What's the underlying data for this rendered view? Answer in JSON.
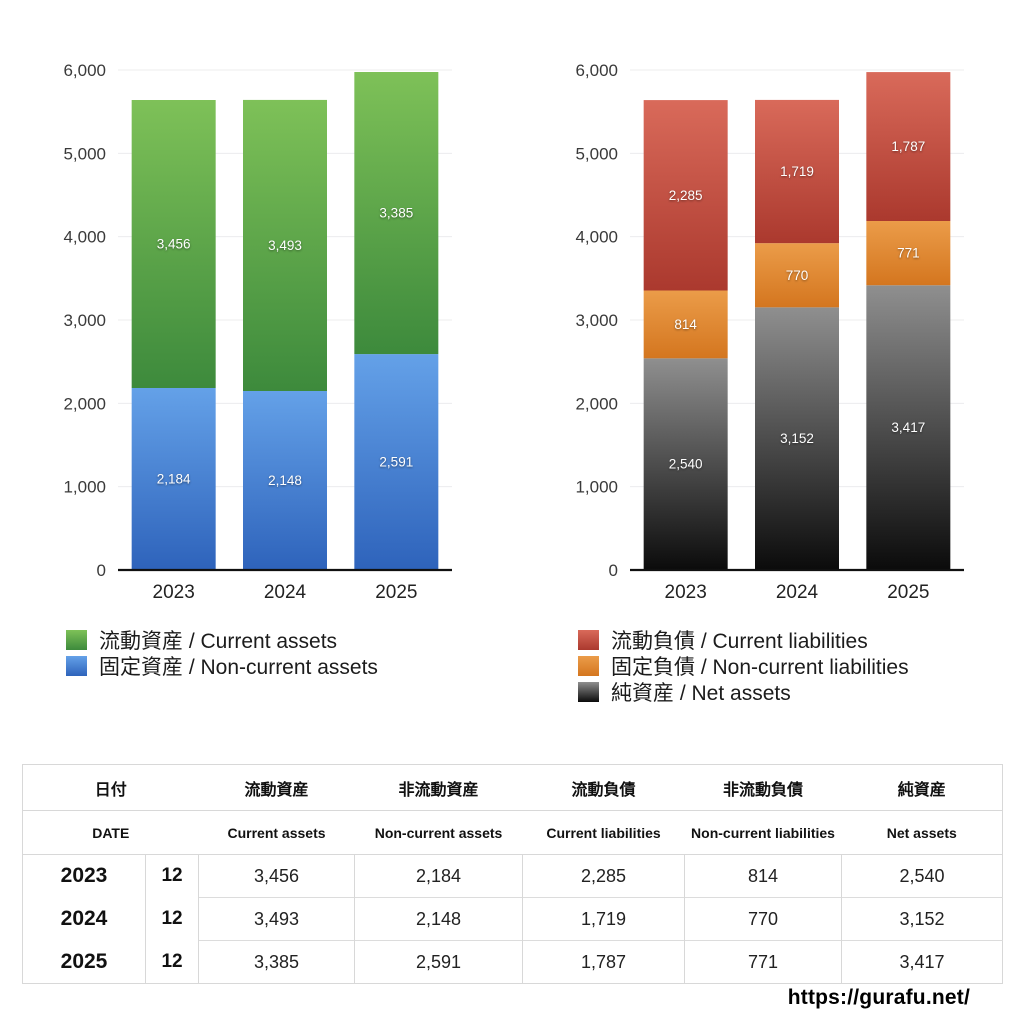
{
  "chart_data": [
    {
      "id": "assets",
      "type": "bar",
      "stacked": true,
      "categories": [
        "2023",
        "2024",
        "2025"
      ],
      "series": [
        {
          "name": "固定資産 / Non-current assets",
          "values": [
            2184,
            2148,
            2591
          ],
          "color_top": "#64a1e8",
          "color_bottom": "#2e63bb"
        },
        {
          "name": "流動資産 / Current assets",
          "values": [
            3456,
            3493,
            3385
          ],
          "color_top": "#7ec158",
          "color_bottom": "#3d8a3c"
        }
      ],
      "legend_order": [
        1,
        0
      ],
      "title": "",
      "xlabel": "",
      "ylabel": "",
      "ylim": [
        0,
        6000
      ],
      "ytick_step": 1000,
      "grid": true,
      "legend_position": "bottom-left",
      "value_labels": "white, centered in each segment, comma-formatted"
    },
    {
      "id": "liabilities",
      "type": "bar",
      "stacked": true,
      "categories": [
        "2023",
        "2024",
        "2025"
      ],
      "series": [
        {
          "name": "純資産 / Net assets",
          "values": [
            2540,
            3152,
            3417
          ],
          "color_top": "#8f8f8f",
          "color_bottom": "#0b0b0b"
        },
        {
          "name": "固定負債 / Non-current liabilities",
          "values": [
            814,
            770,
            771
          ],
          "color_top": "#eb9c49",
          "color_bottom": "#d4761f"
        },
        {
          "name": "流動負債 / Current liabilities",
          "values": [
            2285,
            1719,
            1787
          ],
          "color_top": "#d96a5a",
          "color_bottom": "#ab392e"
        }
      ],
      "legend_order": [
        2,
        1,
        0
      ],
      "title": "",
      "xlabel": "",
      "ylabel": "",
      "ylim": [
        0,
        6000
      ],
      "ytick_step": 1000,
      "grid": true,
      "legend_position": "bottom-left",
      "value_labels": "white, centered in each segment, comma-formatted"
    }
  ],
  "table": {
    "header_jp": [
      "日付",
      "流動資産",
      "非流動資産",
      "流動負債",
      "非流動負債",
      "純資産"
    ],
    "header_en": [
      "DATE",
      "Current assets",
      "Non-current assets",
      "Current liabilities",
      "Non-current liabilities",
      "Net assets"
    ],
    "rows": [
      {
        "year": "2023",
        "month": "12",
        "values": [
          "3,456",
          "2,184",
          "2,285",
          "814",
          "2,540"
        ]
      },
      {
        "year": "2024",
        "month": "12",
        "values": [
          "3,493",
          "2,148",
          "1,719",
          "770",
          "3,152"
        ]
      },
      {
        "year": "2025",
        "month": "12",
        "values": [
          "3,385",
          "2,591",
          "1,787",
          "771",
          "3,417"
        ]
      }
    ]
  },
  "footer": {
    "url": "https://gurafu.net/"
  }
}
